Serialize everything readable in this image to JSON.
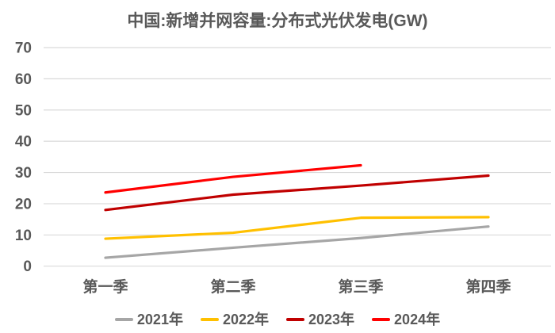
{
  "chart_data": {
    "type": "line",
    "title": "中国:新增并网容量:分布式光伏发电(GW)",
    "categories": [
      "第一季",
      "第二季",
      "第三季",
      "第四季"
    ],
    "series": [
      {
        "name": "2021年",
        "color": "#A6A6A6",
        "values": [
          2.7,
          5.9,
          9.0,
          12.7
        ]
      },
      {
        "name": "2022年",
        "color": "#FFC000",
        "values": [
          8.8,
          10.7,
          15.5,
          15.7
        ]
      },
      {
        "name": "2023年",
        "color": "#C00000",
        "values": [
          18.0,
          22.9,
          25.8,
          29.0
        ]
      },
      {
        "name": "2024年",
        "color": "#FF0000",
        "values": [
          23.6,
          28.6,
          32.3,
          null
        ]
      }
    ],
    "ylim": [
      0,
      70
    ],
    "ytick_step": 10,
    "yticks": [
      0,
      10,
      20,
      30,
      40,
      50,
      60,
      70
    ],
    "grid": "horizontal",
    "legend_position": "bottom",
    "colors": {
      "text": "#595959",
      "gridline": "#D9D9D9",
      "background": "#FFFFFF"
    }
  }
}
